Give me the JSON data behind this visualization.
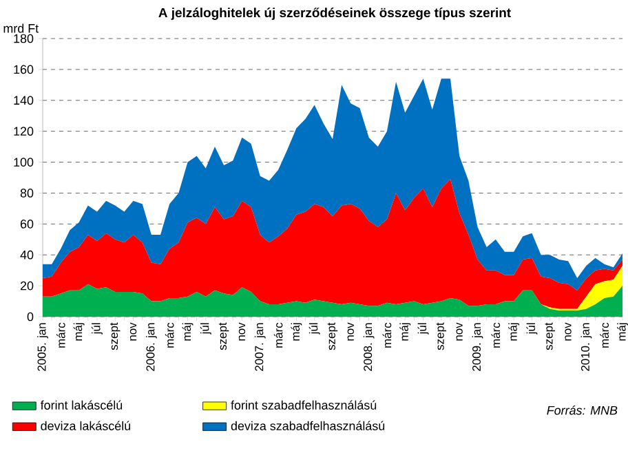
{
  "chart_data": {
    "type": "area",
    "title": "A jelzáloghitelek új szerződéseinek összege típus szerint",
    "ylabel": "mrd Ft",
    "stacked": true,
    "grid": "y",
    "legend": "bottom",
    "categories": [
      "2005. jan",
      null,
      "márc",
      null,
      "máj",
      null,
      "júl",
      null,
      "szept",
      null,
      "nov",
      null,
      "2006. jan",
      null,
      "márc",
      null,
      "máj",
      null,
      "júl",
      null,
      "szept",
      null,
      "nov",
      null,
      "2007. jan",
      null,
      "márc",
      null,
      "máj",
      null,
      "júl",
      null,
      "szept",
      null,
      "nov",
      null,
      "2008. jan",
      null,
      "márc",
      null,
      "máj",
      null,
      "júl",
      null,
      "szept",
      null,
      "nov",
      null,
      "2009. jan",
      null,
      "márc",
      null,
      "máj",
      null,
      "júl",
      null,
      "szept",
      null,
      "nov",
      null,
      "2010. jan",
      null,
      "márc",
      null,
      "máj"
    ],
    "ylim": [
      0,
      180
    ],
    "yticks": [
      0,
      20,
      40,
      60,
      80,
      100,
      120,
      140,
      160,
      180
    ],
    "series": [
      {
        "name": "forint lakáscélú",
        "color": "#00b050",
        "values": [
          13,
          13,
          15,
          17,
          17,
          21,
          18,
          19,
          16,
          16,
          16,
          15,
          10,
          10,
          12,
          12,
          13,
          16,
          13,
          17,
          15,
          14,
          19,
          16,
          10,
          8,
          8,
          9,
          10,
          9,
          11,
          10,
          9,
          8,
          9,
          8,
          7,
          7,
          9,
          8,
          9,
          10,
          8,
          9,
          10,
          12,
          11,
          7,
          7,
          8,
          8,
          10,
          10,
          17,
          17,
          8,
          5,
          4,
          4,
          4,
          5,
          8,
          12,
          13,
          20
        ]
      },
      {
        "name": "forint szabadfelhasználású",
        "color": "#ffff00",
        "values": [
          0,
          0,
          0,
          0,
          0,
          0,
          0,
          0,
          0,
          0,
          0,
          0,
          0,
          0,
          0,
          0,
          0,
          0,
          0,
          0,
          0,
          0,
          0,
          0,
          0,
          0,
          0,
          0,
          0,
          0,
          0,
          0,
          0,
          0,
          0,
          0,
          0,
          0,
          0,
          0,
          0,
          0,
          0,
          0,
          0,
          0,
          0,
          0,
          0,
          0,
          0,
          0,
          0,
          0,
          0,
          0,
          1,
          1,
          1,
          1,
          8,
          13,
          11,
          11,
          13
        ]
      },
      {
        "name": "deviza lakáscélú",
        "color": "#ff0000",
        "values": [
          12,
          13,
          20,
          25,
          28,
          32,
          31,
          35,
          34,
          32,
          37,
          33,
          25,
          24,
          32,
          36,
          48,
          48,
          47,
          54,
          48,
          51,
          56,
          55,
          43,
          40,
          44,
          48,
          56,
          59,
          62,
          61,
          56,
          64,
          64,
          62,
          55,
          51,
          54,
          72,
          60,
          67,
          75,
          62,
          73,
          77,
          56,
          46,
          30,
          22,
          22,
          17,
          17,
          20,
          21,
          18,
          19,
          17,
          16,
          12,
          12,
          9,
          8,
          6,
          4
        ]
      },
      {
        "name": "deviza szabadfelhasználású",
        "color": "#0070c0",
        "values": [
          9,
          8,
          9,
          14,
          16,
          19,
          19,
          21,
          22,
          20,
          22,
          25,
          18,
          19,
          29,
          32,
          39,
          40,
          36,
          39,
          35,
          36,
          41,
          41,
          38,
          40,
          43,
          51,
          56,
          60,
          64,
          54,
          50,
          78,
          65,
          65,
          54,
          52,
          57,
          72,
          63,
          66,
          71,
          63,
          71,
          65,
          37,
          35,
          21,
          15,
          20,
          15,
          15,
          15,
          16,
          14,
          15,
          15,
          15,
          8,
          8,
          8,
          3,
          2,
          4
        ]
      }
    ],
    "annotations": [
      "Forrás: MNB"
    ]
  }
}
